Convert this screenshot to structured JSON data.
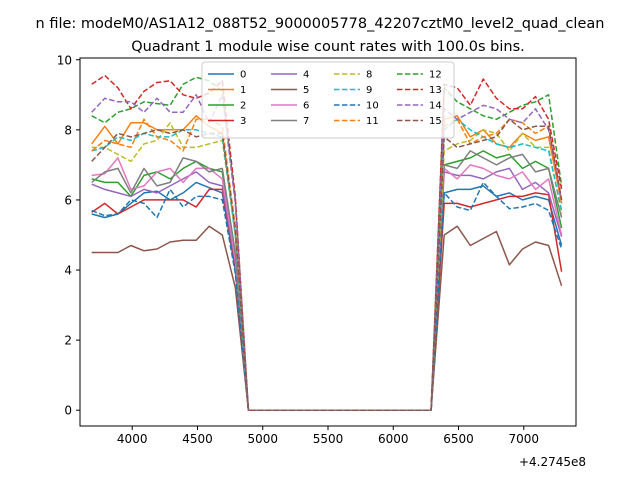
{
  "figure": {
    "suptitle": "n file: modeM0/AS1A12_088T52_9000005778_42207cztM0_level2_quad_clean",
    "title": "Quadrant 1 module wise count rates with 100.0s bins.",
    "x_offset_label": "+4.2745e8"
  },
  "chart_data": {
    "type": "line",
    "title": "Quadrant 1 module wise count rates with 100.0s bins.",
    "xlabel": "",
    "ylabel": "",
    "xlim": [
      3600,
      7400
    ],
    "ylim": [
      -0.45,
      10.05
    ],
    "x_ticks": [
      4000,
      4500,
      5000,
      5500,
      6000,
      6500,
      7000
    ],
    "x_tick_labels": [
      "4000",
      "4500",
      "5000",
      "5500",
      "6000",
      "6500",
      "7000"
    ],
    "y_ticks": [
      0,
      2,
      4,
      6,
      8,
      10
    ],
    "y_tick_labels": [
      "0",
      "2",
      "4",
      "6",
      "8",
      "10"
    ],
    "x_offset": "+4.2745e8",
    "grid": false,
    "legend_placement": "upper-center",
    "x": [
      3690,
      3790,
      3890,
      3990,
      4090,
      4190,
      4290,
      4390,
      4490,
      4590,
      4690,
      4790,
      4890,
      4990,
      5090,
      5190,
      5290,
      5390,
      5490,
      5590,
      5690,
      5790,
      5890,
      5990,
      6090,
      6190,
      6290,
      6390,
      6490,
      6590,
      6690,
      6790,
      6890,
      6990,
      7090,
      7190,
      7290
    ],
    "series": [
      {
        "name": "0",
        "color": "#1f77b4",
        "dash": "solid",
        "values": [
          5.6,
          5.5,
          5.6,
          5.9,
          6.2,
          6.25,
          6.0,
          6.2,
          6.5,
          6.35,
          6.2,
          4.0,
          0,
          0,
          0,
          0,
          0,
          0,
          0,
          0,
          0,
          0,
          0,
          0,
          0,
          0,
          0,
          6.2,
          6.3,
          6.3,
          6.4,
          6.1,
          6.2,
          6.0,
          6.1,
          6.0,
          4.7
        ]
      },
      {
        "name": "1",
        "color": "#ff7f0e",
        "dash": "solid",
        "values": [
          7.6,
          8.1,
          7.6,
          8.2,
          8.2,
          8.0,
          8.0,
          8.0,
          8.4,
          8.1,
          7.9,
          5.0,
          0,
          0,
          0,
          0,
          0,
          0,
          0,
          0,
          0,
          0,
          0,
          0,
          0,
          0,
          0,
          8.3,
          8.4,
          7.8,
          8.0,
          7.6,
          7.5,
          7.9,
          7.7,
          7.8,
          5.9
        ]
      },
      {
        "name": "2",
        "color": "#2ca02c",
        "dash": "solid",
        "values": [
          6.6,
          6.5,
          6.5,
          6.1,
          6.7,
          6.8,
          6.6,
          6.9,
          7.1,
          6.9,
          6.8,
          4.3,
          0,
          0,
          0,
          0,
          0,
          0,
          0,
          0,
          0,
          0,
          0,
          0,
          0,
          0,
          0,
          7.0,
          7.1,
          7.2,
          7.4,
          7.2,
          7.3,
          6.9,
          7.1,
          6.9,
          5.2
        ]
      },
      {
        "name": "3",
        "color": "#d62728",
        "dash": "solid",
        "values": [
          5.65,
          5.9,
          5.6,
          5.8,
          6.0,
          6.0,
          6.0,
          6.0,
          5.8,
          6.3,
          6.3,
          4.1,
          0,
          0,
          0,
          0,
          0,
          0,
          0,
          0,
          0,
          0,
          0,
          0,
          0,
          0,
          0,
          5.9,
          5.9,
          5.8,
          5.9,
          6.0,
          6.1,
          6.1,
          6.2,
          6.15,
          3.95
        ]
      },
      {
        "name": "4",
        "color": "#9467bd",
        "dash": "solid",
        "values": [
          6.45,
          6.3,
          6.2,
          6.1,
          6.3,
          6.2,
          6.4,
          6.6,
          6.8,
          6.5,
          6.4,
          4.2,
          0,
          0,
          0,
          0,
          0,
          0,
          0,
          0,
          0,
          0,
          0,
          0,
          0,
          0,
          0,
          6.8,
          6.7,
          6.7,
          6.6,
          6.8,
          6.9,
          6.3,
          6.5,
          6.2,
          4.95
        ]
      },
      {
        "name": "5",
        "color": "#8c564b",
        "dash": "solid",
        "values": [
          4.5,
          4.5,
          4.5,
          4.7,
          4.55,
          4.6,
          4.8,
          4.85,
          4.85,
          5.25,
          5.0,
          3.5,
          0,
          0,
          0,
          0,
          0,
          0,
          0,
          0,
          0,
          0,
          0,
          0,
          0,
          0,
          0,
          5.0,
          5.25,
          4.7,
          4.9,
          5.1,
          4.15,
          4.6,
          4.8,
          4.7,
          3.55
        ]
      },
      {
        "name": "6",
        "color": "#e377c2",
        "dash": "solid",
        "values": [
          6.7,
          6.75,
          7.2,
          6.3,
          6.4,
          6.8,
          6.9,
          6.5,
          6.9,
          6.9,
          6.6,
          4.3,
          0,
          0,
          0,
          0,
          0,
          0,
          0,
          0,
          0,
          0,
          0,
          0,
          0,
          0,
          0,
          6.9,
          6.6,
          7.0,
          6.9,
          6.7,
          6.6,
          6.8,
          6.3,
          6.6,
          5.0
        ]
      },
      {
        "name": "7",
        "color": "#7f7f7f",
        "dash": "solid",
        "values": [
          6.5,
          6.8,
          6.9,
          6.2,
          6.9,
          6.4,
          6.5,
          7.2,
          7.1,
          6.8,
          6.9,
          4.5,
          0,
          0,
          0,
          0,
          0,
          0,
          0,
          0,
          0,
          0,
          0,
          0,
          0,
          0,
          0,
          7.0,
          6.9,
          7.4,
          7.2,
          7.0,
          7.2,
          7.3,
          6.8,
          6.9,
          5.5
        ]
      },
      {
        "name": "8",
        "color": "#bcbd22",
        "dash": "dashed",
        "values": [
          7.5,
          7.5,
          7.3,
          7.1,
          7.6,
          7.7,
          8.2,
          7.5,
          7.5,
          7.6,
          7.7,
          5.0,
          0,
          0,
          0,
          0,
          0,
          0,
          0,
          0,
          0,
          0,
          0,
          0,
          0,
          0,
          0,
          7.4,
          7.6,
          7.7,
          8.0,
          7.9,
          7.4,
          7.9,
          7.5,
          7.5,
          5.6
        ]
      },
      {
        "name": "9",
        "color": "#17becf",
        "dash": "dashed",
        "values": [
          7.4,
          7.5,
          7.8,
          7.7,
          7.9,
          7.8,
          7.8,
          8.0,
          8.0,
          7.9,
          7.8,
          5.0,
          0,
          0,
          0,
          0,
          0,
          0,
          0,
          0,
          0,
          0,
          0,
          0,
          0,
          0,
          0,
          8.0,
          8.3,
          8.0,
          7.8,
          7.6,
          7.5,
          7.6,
          7.5,
          7.4,
          5.7
        ]
      },
      {
        "name": "10",
        "color": "#1f77b4",
        "dash": "dashed",
        "values": [
          5.7,
          5.55,
          5.6,
          6.0,
          5.9,
          5.5,
          6.3,
          5.8,
          6.1,
          6.1,
          6.0,
          3.9,
          0,
          0,
          0,
          0,
          0,
          0,
          0,
          0,
          0,
          0,
          0,
          0,
          0,
          0,
          0,
          6.2,
          5.8,
          5.7,
          6.5,
          6.1,
          5.75,
          5.8,
          5.9,
          5.7,
          4.6
        ]
      },
      {
        "name": "11",
        "color": "#ff7f0e",
        "dash": "dashed",
        "values": [
          7.4,
          7.7,
          7.6,
          7.5,
          8.3,
          7.8,
          7.7,
          7.4,
          8.3,
          8.3,
          8.1,
          5.2,
          0,
          0,
          0,
          0,
          0,
          0,
          0,
          0,
          0,
          0,
          0,
          0,
          0,
          0,
          0,
          8.1,
          8.3,
          7.6,
          7.8,
          7.9,
          8.3,
          8.2,
          7.9,
          8.1,
          5.9
        ]
      },
      {
        "name": "12",
        "color": "#2ca02c",
        "dash": "dashed",
        "values": [
          8.4,
          8.2,
          8.5,
          8.6,
          8.8,
          8.75,
          8.7,
          9.3,
          9.5,
          9.4,
          9.1,
          6.0,
          0,
          0,
          0,
          0,
          0,
          0,
          0,
          0,
          0,
          0,
          0,
          0,
          0,
          0,
          0,
          9.2,
          8.8,
          8.6,
          8.4,
          8.3,
          8.5,
          8.7,
          8.8,
          9.0,
          6.4
        ]
      },
      {
        "name": "13",
        "color": "#d62728",
        "dash": "dashed",
        "values": [
          9.3,
          9.55,
          9.2,
          8.6,
          9.1,
          9.35,
          9.4,
          9.0,
          8.9,
          9.05,
          9.4,
          6.1,
          0,
          0,
          0,
          0,
          0,
          0,
          0,
          0,
          0,
          0,
          0,
          0,
          0,
          0,
          0,
          9.3,
          9.2,
          8.7,
          9.45,
          8.9,
          8.6,
          8.6,
          8.95,
          8.3,
          6.3
        ]
      },
      {
        "name": "14",
        "color": "#9467bd",
        "dash": "dashed",
        "values": [
          8.5,
          8.9,
          8.8,
          8.8,
          8.5,
          8.9,
          8.5,
          8.5,
          9.0,
          8.2,
          9.0,
          5.9,
          0,
          0,
          0,
          0,
          0,
          0,
          0,
          0,
          0,
          0,
          0,
          0,
          0,
          0,
          0,
          8.6,
          8.3,
          8.5,
          8.7,
          8.6,
          8.3,
          8.2,
          8.6,
          8.0,
          6.0
        ]
      },
      {
        "name": "15",
        "color": "#8c564b",
        "dash": "dashed",
        "values": [
          7.1,
          7.5,
          7.9,
          7.8,
          7.9,
          8.0,
          7.9,
          8.0,
          7.8,
          7.9,
          7.9,
          5.2,
          0,
          0,
          0,
          0,
          0,
          0,
          0,
          0,
          0,
          0,
          0,
          0,
          0,
          0,
          0,
          7.8,
          7.5,
          7.6,
          7.7,
          7.8,
          8.3,
          8.0,
          8.1,
          8.1,
          6.0
        ]
      }
    ]
  }
}
